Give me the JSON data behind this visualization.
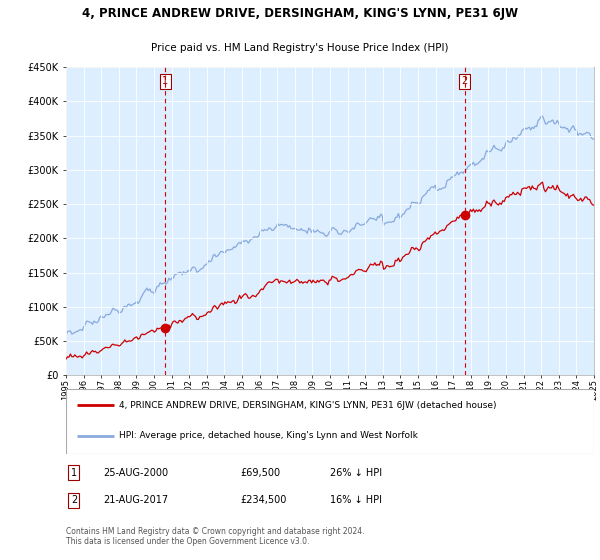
{
  "title": "4, PRINCE ANDREW DRIVE, DERSINGHAM, KING'S LYNN, PE31 6JW",
  "subtitle": "Price paid vs. HM Land Registry's House Price Index (HPI)",
  "legend_label_red": "4, PRINCE ANDREW DRIVE, DERSINGHAM, KING'S LYNN, PE31 6JW (detached house)",
  "legend_label_blue": "HPI: Average price, detached house, King's Lynn and West Norfolk",
  "transaction1_date": "25-AUG-2000",
  "transaction1_price": 69500,
  "transaction1_hpi_diff": "26% ↓ HPI",
  "transaction2_date": "21-AUG-2017",
  "transaction2_price": 234500,
  "transaction2_hpi_diff": "16% ↓ HPI",
  "footer": "Contains HM Land Registry data © Crown copyright and database right 2024.\nThis data is licensed under the Open Government Licence v3.0.",
  "ylim": [
    0,
    450000
  ],
  "yticks": [
    0,
    50000,
    100000,
    150000,
    200000,
    250000,
    300000,
    350000,
    400000,
    450000
  ],
  "plot_bg_color": "#ddeeff",
  "red_color": "#cc0000",
  "blue_color": "#88aadd",
  "vline_color": "#dd0000",
  "marker1_x_year": 2000.65,
  "marker1_y": 69500,
  "marker2_x_year": 2017.65,
  "marker2_y": 234500,
  "xmin": 1995,
  "xmax": 2025
}
